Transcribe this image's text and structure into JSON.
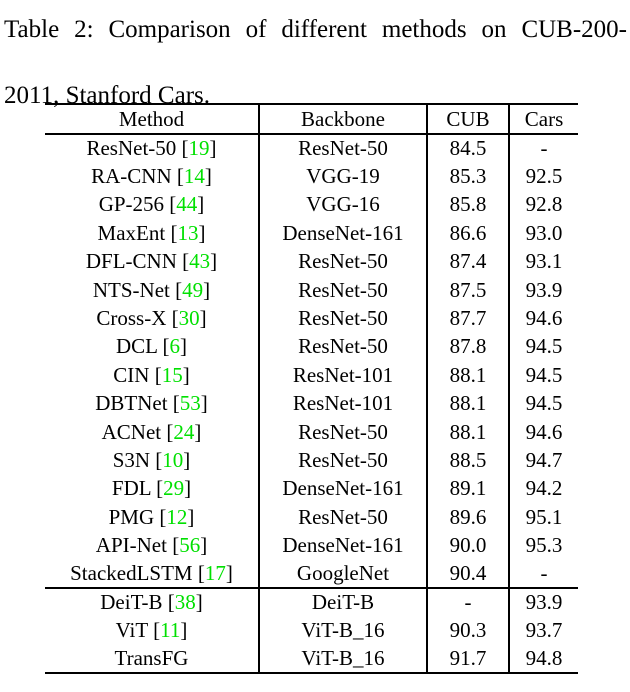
{
  "caption": {
    "line1": "Table 2: Comparison of different methods on CUB-200-",
    "line2": "2011, Stanford Cars."
  },
  "colors": {
    "citation_green": "#00e000",
    "text": "#000000",
    "rules": "#000000",
    "background": "#ffffff"
  },
  "table": {
    "headers": [
      "Method",
      "Backbone",
      "CUB",
      "Cars"
    ],
    "rows": [
      {
        "method": "ResNet-50",
        "ref": "19",
        "backbone": "ResNet-50",
        "cub": "84.5",
        "cars": "-",
        "cub_bold": false,
        "cars_bold": false,
        "group": 1
      },
      {
        "method": "RA-CNN",
        "ref": "14",
        "backbone": "VGG-19",
        "cub": "85.3",
        "cars": "92.5",
        "cub_bold": false,
        "cars_bold": false,
        "group": 1
      },
      {
        "method": "GP-256",
        "ref": "44",
        "backbone": "VGG-16",
        "cub": "85.8",
        "cars": "92.8",
        "cub_bold": false,
        "cars_bold": false,
        "group": 1
      },
      {
        "method": "MaxEnt",
        "ref": "13",
        "backbone": "DenseNet-161",
        "cub": "86.6",
        "cars": "93.0",
        "cub_bold": false,
        "cars_bold": false,
        "group": 1
      },
      {
        "method": "DFL-CNN",
        "ref": "43",
        "backbone": "ResNet-50",
        "cub": "87.4",
        "cars": "93.1",
        "cub_bold": false,
        "cars_bold": false,
        "group": 1
      },
      {
        "method": "NTS-Net",
        "ref": "49",
        "backbone": "ResNet-50",
        "cub": "87.5",
        "cars": "93.9",
        "cub_bold": false,
        "cars_bold": false,
        "group": 1
      },
      {
        "method": "Cross-X",
        "ref": "30",
        "backbone": "ResNet-50",
        "cub": "87.7",
        "cars": "94.6",
        "cub_bold": false,
        "cars_bold": false,
        "group": 1
      },
      {
        "method": "DCL",
        "ref": "6",
        "backbone": "ResNet-50",
        "cub": "87.8",
        "cars": "94.5",
        "cub_bold": false,
        "cars_bold": false,
        "group": 1
      },
      {
        "method": "CIN",
        "ref": "15",
        "backbone": "ResNet-101",
        "cub": "88.1",
        "cars": "94.5",
        "cub_bold": false,
        "cars_bold": false,
        "group": 1
      },
      {
        "method": "DBTNet",
        "ref": "53",
        "backbone": "ResNet-101",
        "cub": "88.1",
        "cars": "94.5",
        "cub_bold": false,
        "cars_bold": false,
        "group": 1
      },
      {
        "method": "ACNet",
        "ref": "24",
        "backbone": "ResNet-50",
        "cub": "88.1",
        "cars": "94.6",
        "cub_bold": false,
        "cars_bold": false,
        "group": 1
      },
      {
        "method": "S3N",
        "ref": "10",
        "backbone": "ResNet-50",
        "cub": "88.5",
        "cars": "94.7",
        "cub_bold": false,
        "cars_bold": false,
        "group": 1
      },
      {
        "method": "FDL",
        "ref": "29",
        "backbone": "DenseNet-161",
        "cub": "89.1",
        "cars": "94.2",
        "cub_bold": false,
        "cars_bold": false,
        "group": 1
      },
      {
        "method": "PMG",
        "ref": "12",
        "backbone": "ResNet-50",
        "cub": "89.6",
        "cars": "95.1",
        "cub_bold": false,
        "cars_bold": false,
        "group": 1
      },
      {
        "method": "API-Net",
        "ref": "56",
        "backbone": "DenseNet-161",
        "cub": "90.0",
        "cars": "95.3",
        "cub_bold": false,
        "cars_bold": true,
        "group": 1
      },
      {
        "method": "StackedLSTM",
        "ref": "17",
        "backbone": "GoogleNet",
        "cub": "90.4",
        "cars": "-",
        "cub_bold": false,
        "cars_bold": false,
        "group": 1
      },
      {
        "method": "DeiT-B",
        "ref": "38",
        "backbone": "DeiT-B",
        "cub": "-",
        "cars": "93.9",
        "cub_bold": false,
        "cars_bold": false,
        "group": 2
      },
      {
        "method": "ViT",
        "ref": "11",
        "backbone": "ViT-B_16",
        "cub": "90.3",
        "cars": "93.7",
        "cub_bold": false,
        "cars_bold": false,
        "group": 2
      },
      {
        "method": "TransFG",
        "ref": null,
        "backbone": "ViT-B_16",
        "cub": "91.7",
        "cars": "94.8",
        "cub_bold": true,
        "cars_bold": false,
        "group": 2
      }
    ]
  }
}
